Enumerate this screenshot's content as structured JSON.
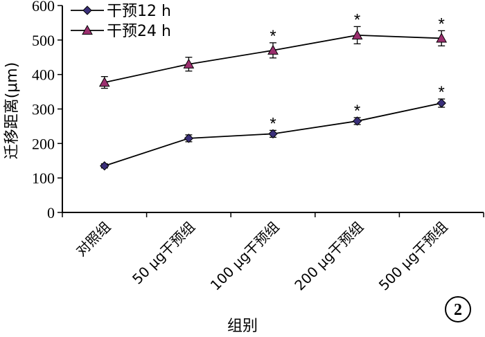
{
  "chart_data": {
    "type": "line",
    "title": "",
    "xlabel": "组别",
    "ylabel": "迁移距离(μm)",
    "ylim": [
      0,
      600
    ],
    "yticks": [
      0,
      100,
      200,
      300,
      400,
      500,
      600
    ],
    "categories": [
      "对照组",
      "50 μg干预组",
      "100 μg干预组",
      "200 μg干预组",
      "500 μg干预组"
    ],
    "legend_position": "top-left",
    "grid": false,
    "series": [
      {
        "name": "干预12 h",
        "marker": "diamond",
        "color": "#3a2f7a",
        "values": [
          135,
          215,
          228,
          265,
          317
        ],
        "errors": [
          6,
          10,
          10,
          10,
          12
        ],
        "significant": [
          false,
          false,
          true,
          true,
          true
        ]
      },
      {
        "name": "干预24 h",
        "marker": "triangle",
        "color": "#9b2f6e",
        "values": [
          377,
          430,
          470,
          514,
          505
        ],
        "errors": [
          17,
          20,
          22,
          25,
          22
        ],
        "significant": [
          false,
          false,
          true,
          true,
          true
        ]
      }
    ],
    "significance_marker": "*",
    "panel_label": "2"
  }
}
